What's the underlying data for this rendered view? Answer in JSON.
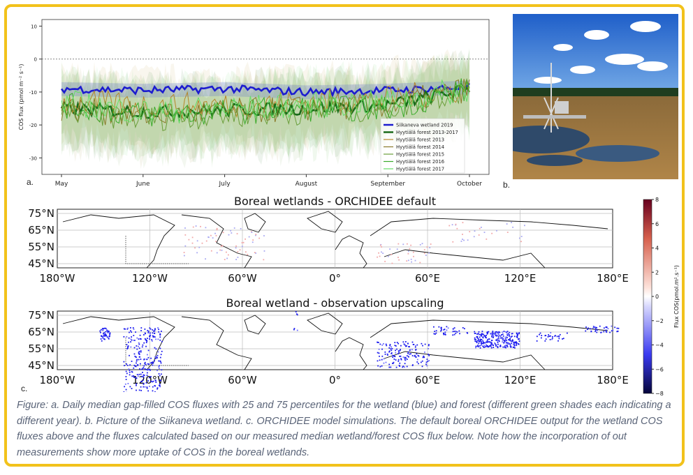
{
  "caption": "Figure: a. Daily median gap-filled COS fluxes with 25 and 75 percentiles for the wetland (blue) and forest (different green shades each indicating a different year).  b. Picture of the Siikaneva wetland. c. ORCHIDEE model simulations. The default boreal ORCHIDEE output for the wetland COS fluxes above and the fluxes calculated based on our measured median wetland/forest COS flux below. Note how the incorporation of out measurements show more uptake of COS in the boreal wetlands.",
  "panel_labels": {
    "a": "a.",
    "b": "b.",
    "c": "c."
  },
  "photo": {
    "name": "siikaneva-wetland-photo"
  },
  "chart_data": [
    {
      "type": "line",
      "ylabel": "COS flux (pmol m⁻² s⁻¹)",
      "ylim": [
        -35,
        12
      ],
      "yticks": [
        10,
        0,
        -10,
        -20,
        -30
      ],
      "xticks": [
        "May",
        "June",
        "July",
        "August",
        "September",
        "October"
      ],
      "x": [
        "May",
        "June",
        "July",
        "August",
        "September",
        "October"
      ],
      "zero_line": true,
      "legend_position": "lower-right",
      "series": [
        {
          "name": "Siikaneva wetland 2019",
          "color": "#1c1ccf",
          "values": [
            -9,
            -9.5,
            -9,
            -10,
            -9.5,
            -8.5
          ]
        },
        {
          "name": "Hyytiälä forest 2013-2017",
          "color": "#1a6b1a",
          "values": [
            -15,
            -16,
            -15.5,
            -15,
            -14,
            -9
          ]
        },
        {
          "name": "Hyytiälä forest 2013",
          "color": "#b5862a",
          "values": [
            -13,
            -14,
            -14,
            -13,
            -12,
            -9
          ]
        },
        {
          "name": "Hyytiälä forest 2014",
          "color": "#8a7a2a",
          "values": [
            -15,
            -17,
            -16,
            -15,
            -14,
            -9
          ]
        },
        {
          "name": "Hyytiälä forest 2015",
          "color": "#6a9e3a",
          "values": [
            -16,
            -18,
            -17,
            -16,
            -15,
            -9
          ]
        },
        {
          "name": "Hyytiälä forest 2016",
          "color": "#3aaa2a",
          "values": [
            -14,
            -17,
            -16,
            -15,
            -15,
            -9
          ]
        },
        {
          "name": "Hyytiälä forest 2017",
          "color": "#66dd66",
          "values": [
            -13,
            -16,
            -15,
            -14,
            -13,
            -9
          ]
        }
      ]
    },
    {
      "type": "heatmap",
      "title": "Boreal wetlands - ORCHIDEE default",
      "lat_ticks": [
        "75°N",
        "65°N",
        "55°N",
        "45°N"
      ],
      "lon_ticks": [
        "180°W",
        "120°W",
        "60°W",
        "0°",
        "60°E",
        "120°E",
        "180°E"
      ]
    },
    {
      "type": "heatmap",
      "title": "Boreal wetland - observation upscaling",
      "lat_ticks": [
        "75°N",
        "65°N",
        "55°N",
        "45°N"
      ],
      "lon_ticks": [
        "180°W",
        "120°W",
        "60°W",
        "0°",
        "60°E",
        "120°E",
        "180°E"
      ]
    },
    {
      "type": "colorbar",
      "label": "Flux COS(pmol.m².s⁻¹)",
      "ticks": [
        "8",
        "6",
        "4",
        "2",
        "0",
        "−2",
        "−4",
        "−6",
        "−8"
      ],
      "range": [
        -8,
        8
      ]
    }
  ]
}
